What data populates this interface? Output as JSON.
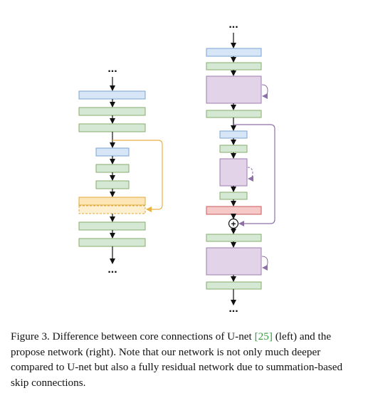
{
  "colors": {
    "blue_fill": "#d6e6f7",
    "blue_stroke": "#7ba3d3",
    "green_fill": "#d5e8d4",
    "green_stroke": "#86ad6e",
    "purple_fill": "#e3d3e8",
    "purple_stroke": "#9e7eb0",
    "orange_fill": "#fce6b8",
    "orange_stroke": "#e0a93a",
    "red_fill": "#f6c9c9",
    "red_stroke": "#c85a5a",
    "skip_orange": "#e8b143",
    "skip_purple": "#8e6fa8",
    "arrow": "#111111",
    "ref_link": "#2e9e3a"
  },
  "diagram": {
    "left_network": {
      "label": "U-net (left)",
      "blocks": [
        "blue",
        "green",
        "green",
        "blue",
        "green",
        "green",
        "orange",
        "orange-dashed",
        "green",
        "green"
      ],
      "skip_connection": "concatenation"
    },
    "right_network": {
      "label": "proposed network (right)",
      "blocks": [
        "blue",
        "green",
        "purple-residual",
        "green",
        "blue",
        "green",
        "purple-residual",
        "green",
        "red",
        "sum",
        "green",
        "purple-residual",
        "green"
      ],
      "skip_connection": "summation",
      "sum_symbol": "+"
    },
    "ellipsis": "..."
  },
  "caption": {
    "part1": "Figure 3. Difference between core connections of U-net ",
    "ref": "[25]",
    "part2": " (left) and the propose network (right). Note that our network is not only much deeper compared to U-net but also a fully residual network due to summation-based skip connections."
  }
}
